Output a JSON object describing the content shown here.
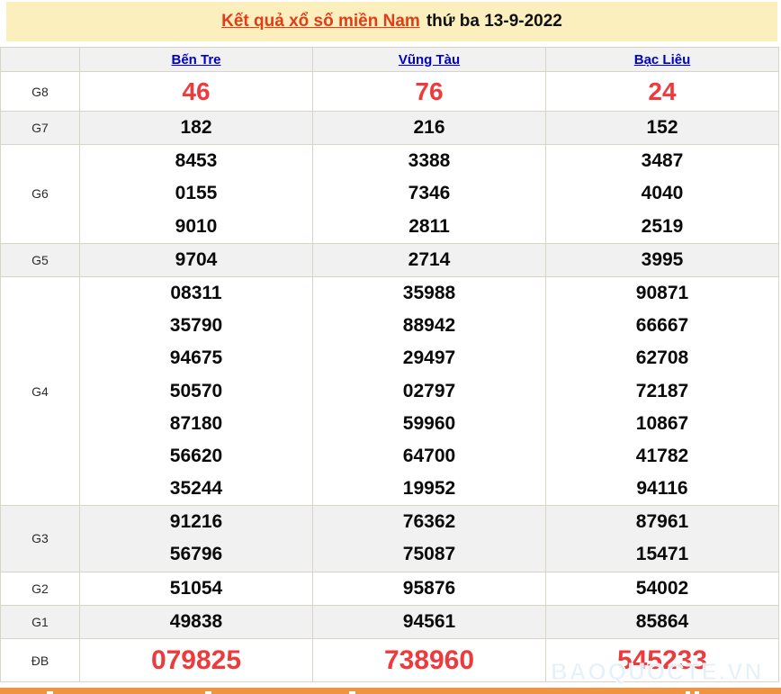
{
  "banner": {
    "title_link": "Kết quả xổ số miền Nam",
    "title_date": "thứ ba 13-9-2022"
  },
  "table": {
    "corner_label": "",
    "columns": [
      "Bến Tre",
      "Vũng Tàu",
      "Bạc Liêu"
    ],
    "rows": [
      {
        "label": "G8",
        "values": [
          [
            "46"
          ],
          [
            "76"
          ],
          [
            "24"
          ]
        ]
      },
      {
        "label": "G7",
        "values": [
          [
            "182"
          ],
          [
            "216"
          ],
          [
            "152"
          ]
        ]
      },
      {
        "label": "G6",
        "values": [
          [
            "8453",
            "0155",
            "9010"
          ],
          [
            "3388",
            "7346",
            "2811"
          ],
          [
            "3487",
            "4040",
            "2519"
          ]
        ]
      },
      {
        "label": "G5",
        "values": [
          [
            "9704"
          ],
          [
            "2714"
          ],
          [
            "3995"
          ]
        ]
      },
      {
        "label": "G4",
        "values": [
          [
            "08311",
            "35790",
            "94675",
            "50570",
            "87180",
            "56620",
            "35244"
          ],
          [
            "35988",
            "88942",
            "29497",
            "02797",
            "59960",
            "64700",
            "19952"
          ],
          [
            "90871",
            "66667",
            "62708",
            "72187",
            "10867",
            "41782",
            "94116"
          ]
        ]
      },
      {
        "label": "G3",
        "values": [
          [
            "91216",
            "56796"
          ],
          [
            "76362",
            "75087"
          ],
          [
            "87961",
            "15471"
          ]
        ]
      },
      {
        "label": "G2",
        "values": [
          [
            "51054"
          ],
          [
            "95876"
          ],
          [
            "54002"
          ]
        ]
      },
      {
        "label": "G1",
        "values": [
          [
            "49838"
          ],
          [
            "94561"
          ],
          [
            "85864"
          ]
        ]
      },
      {
        "label": "ĐB",
        "values": [
          [
            "079825"
          ],
          [
            "738960"
          ],
          [
            "545233"
          ]
        ]
      }
    ]
  },
  "watermark": "BAOQUOCTE.VN",
  "colors": {
    "banner_bg": "#fbf0bd",
    "title_red": "#e53b17",
    "link_blue": "#0000cc",
    "number_red": "#ed3a3c",
    "number_black": "#0a0a0a",
    "shade_gray": "#f1f1f1",
    "border_gray": "#d8d5c8",
    "orange_bar": "#ef9440"
  }
}
